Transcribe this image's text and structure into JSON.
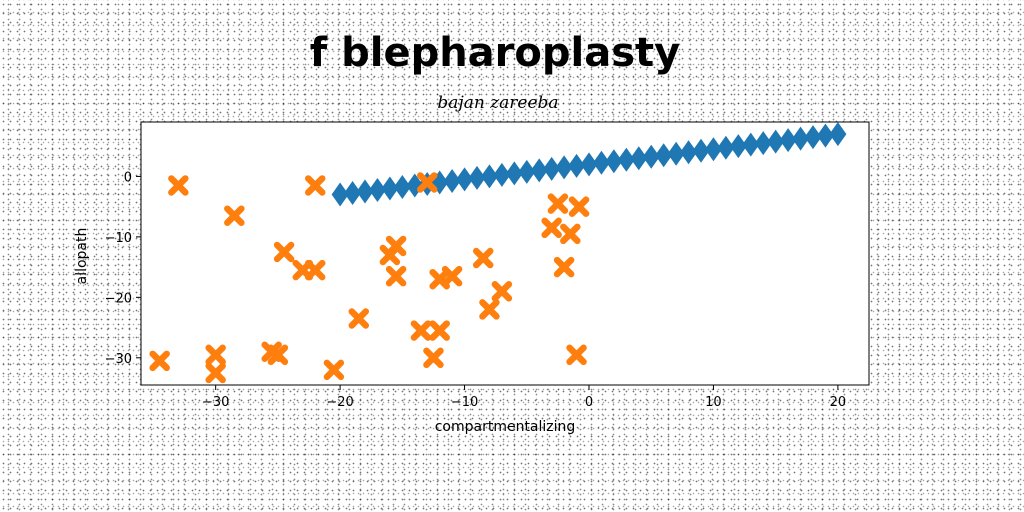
{
  "chart_data": {
    "type": "scatter",
    "title": "f blepharoplasty",
    "subtitle": "bajan zareeba",
    "xlabel": "compartmentalizing",
    "ylabel": "allopath",
    "xlim": [
      -36,
      22.5
    ],
    "ylim": [
      -34.5,
      9
    ],
    "xticks": [
      -30,
      -20,
      -10,
      0,
      10,
      20
    ],
    "yticks": [
      -30,
      -20,
      -10,
      0
    ],
    "grid": false,
    "series": [
      {
        "marker": "diamond",
        "color": "#1f77b4",
        "x": [
          -20,
          -19,
          -18,
          -17,
          -16,
          -15,
          -14,
          -13,
          -12,
          -11,
          -10,
          -9,
          -8,
          -7,
          -6,
          -5,
          -4,
          -3,
          -2,
          -1,
          0,
          1,
          2,
          3,
          4,
          5,
          6,
          7,
          8,
          9,
          10,
          11,
          12,
          13,
          14,
          15,
          16,
          17,
          18,
          19,
          20
        ],
        "y": [
          -3,
          -2.75,
          -2.5,
          -2.25,
          -2,
          -1.75,
          -1.5,
          -1.25,
          -1,
          -0.75,
          -0.5,
          -0.25,
          0,
          0.25,
          0.5,
          0.75,
          1,
          1.25,
          1.5,
          1.75,
          2,
          2.25,
          2.5,
          2.75,
          3,
          3.25,
          3.5,
          3.75,
          4,
          4.25,
          4.5,
          4.75,
          5,
          5.25,
          5.5,
          5.75,
          6,
          6.25,
          6.5,
          6.75,
          7
        ]
      },
      {
        "marker": "x",
        "color": "#ff7f0e",
        "x": [
          -33,
          -22,
          -13,
          -28.5,
          -24.5,
          -23,
          -22,
          -16,
          -15.5,
          -15.5,
          -2.5,
          -3,
          -0.8,
          -1.5,
          -2,
          -8.5,
          -11,
          -12,
          -7,
          -8,
          -18.5,
          -13.5,
          -12,
          -12.5,
          -25.5,
          -25,
          -30,
          -34.5,
          -30,
          -20.5,
          -1
        ],
        "y": [
          -1.5,
          -1.5,
          -1,
          -6.5,
          -12.5,
          -15.5,
          -15.5,
          -13,
          -11.5,
          -16.5,
          -4.5,
          -8.5,
          -5,
          -9.5,
          -15,
          -13.5,
          -16.5,
          -17,
          -19,
          -22,
          -23.5,
          -25.5,
          -25.5,
          -30,
          -29,
          -29.5,
          -29.5,
          -30.5,
          -32.5,
          -32,
          -29.5
        ]
      }
    ]
  }
}
